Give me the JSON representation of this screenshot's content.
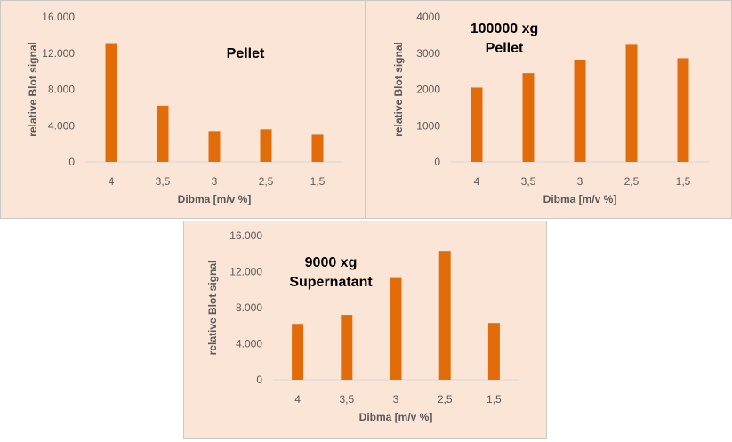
{
  "colors": {
    "bar": "#e36c0a",
    "axis": "#d9d9d9",
    "panel_bg": "#fbe5d6"
  },
  "chart_data": [
    {
      "type": "bar",
      "title": [
        "Pellet"
      ],
      "xlabel": "Dibma [m/v %]",
      "ylabel": "relative Blot signal",
      "categories": [
        "4",
        "3,5",
        "3",
        "2,5",
        "1,5"
      ],
      "values": [
        13100,
        6200,
        3400,
        3600,
        3000
      ],
      "ylim": [
        0,
        16000
      ],
      "yticks": [
        0,
        4000,
        8000,
        12000,
        16000
      ],
      "ytick_labels": [
        "0",
        "4.000",
        "8.000",
        "12.000",
        "16.000"
      ],
      "grid": false,
      "legend": "none"
    },
    {
      "type": "bar",
      "title": [
        "100000 xg",
        "Pellet"
      ],
      "xlabel": "Dibma [m/v %]",
      "ylabel": "relative Blot signal",
      "categories": [
        "4",
        "3,5",
        "3",
        "2,5",
        "1,5"
      ],
      "values": [
        2050,
        2450,
        2800,
        3230,
        2860
      ],
      "ylim": [
        0,
        4000
      ],
      "yticks": [
        0,
        1000,
        2000,
        3000,
        4000
      ],
      "ytick_labels": [
        "0",
        "1000",
        "2000",
        "3000",
        "4000"
      ],
      "grid": false,
      "legend": "none"
    },
    {
      "type": "bar",
      "title": [
        "9000 xg",
        "Supernatant"
      ],
      "xlabel": "Dibma [m/v %]",
      "ylabel": "relative Blot signal",
      "categories": [
        "4",
        "3,5",
        "3",
        "2,5",
        "1,5"
      ],
      "values": [
        6200,
        7200,
        11300,
        14300,
        6300
      ],
      "ylim": [
        0,
        16000
      ],
      "yticks": [
        0,
        4000,
        8000,
        12000,
        16000
      ],
      "ytick_labels": [
        "0",
        "4.000",
        "8.000",
        "12.000",
        "16.000"
      ],
      "grid": false,
      "legend": "none"
    }
  ]
}
